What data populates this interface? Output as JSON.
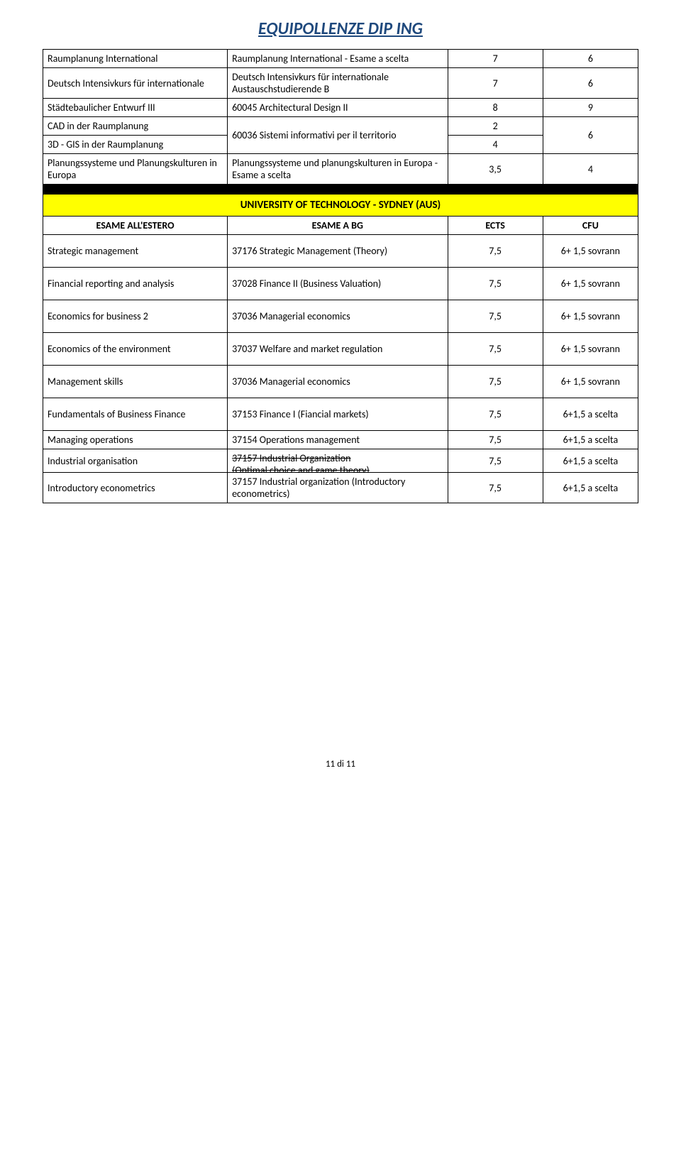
{
  "title": "EQUIPOLLENZE DIP ING",
  "table1": {
    "rows": [
      {
        "a": "Raumplanung International",
        "b": "Raumplanung International - Esame a scelta",
        "c": "7",
        "d": "6"
      },
      {
        "a": "Deutsch Intensivkurs für internationale",
        "b": "Deutsch Intensivkurs für internationale Austauschstudierende B",
        "c": "7",
        "d": "6"
      },
      {
        "a": "Städtebaulicher Entwurf III",
        "b": "60045 Architectural Design II",
        "c": "8",
        "d": "9"
      }
    ],
    "merged": {
      "a1": "CAD in der Raumplanung",
      "a2": "3D - GIS in der Raumplanung",
      "b": "60036 Sistemi informativi per il territorio",
      "c1": "2",
      "c2": "4",
      "d": "6"
    },
    "last": {
      "a": "Planungssysteme und Planungskulturen in Europa",
      "b": "Planungssysteme und planungskulturen in Europa - Esame a scelta",
      "c": "3,5",
      "d": "4"
    }
  },
  "university": "UNIVERSITY OF TECHNOLOGY - SYDNEY (AUS)",
  "headers": {
    "a": "ESAME ALL'ESTERO",
    "b": "ESAME A BG",
    "c": "ECTS",
    "d": "CFU"
  },
  "table2": {
    "tall_rows": [
      {
        "a": "Strategic management",
        "b": "37176 Strategic Management (Theory)",
        "c": "7,5",
        "d": "6+ 1,5 sovrann"
      },
      {
        "a": "Financial reporting and analysis",
        "b": "37028 Finance II (Business Valuation)",
        "c": "7,5",
        "d": "6+ 1,5 sovrann"
      },
      {
        "a": "Economics for business 2",
        "b": "37036 Managerial economics",
        "c": "7,5",
        "d": "6+ 1,5 sovrann"
      },
      {
        "a": "Economics of the environment",
        "b": "37037 Welfare and market regulation",
        "c": "7,5",
        "d": "6+ 1,5 sovrann"
      },
      {
        "a": "Management skills",
        "b": "37036 Managerial economics",
        "c": "7,5",
        "d": "6+ 1,5 sovrann"
      },
      {
        "a": "Fundamentals of Business Finance",
        "b": "37153 Finance I (Fiancial markets)",
        "c": "7,5",
        "d": "6+1,5 a scelta"
      }
    ],
    "short_rows": [
      {
        "a": "Managing operations",
        "b": "37154 Operations management",
        "c": "7,5",
        "d": "6+1,5 a scelta"
      }
    ],
    "industrial": {
      "a": "Industrial organisation",
      "b1": "37157 Industrial Organization",
      "b2": "(Optimal choice and game theory)",
      "c": "7,5",
      "d": "6+1,5 a scelta"
    },
    "intro": {
      "a": "Introductory econometrics",
      "b": "37157 Industrial organization (Introductory econometrics)",
      "c": "7,5",
      "d": "6+1,5 a scelta"
    }
  },
  "footer": "11 di 11"
}
